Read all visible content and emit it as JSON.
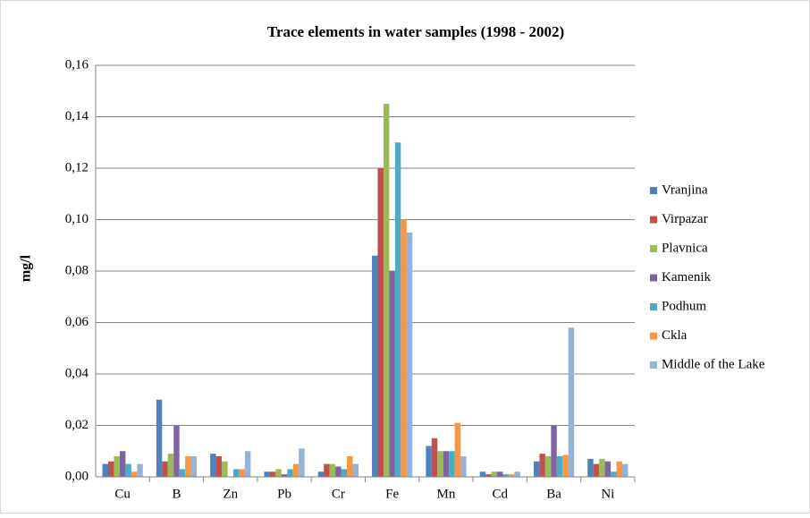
{
  "chart_data": {
    "type": "bar",
    "title": "Trace elements in water samples (1998 - 2002)",
    "y_label": "mg/l",
    "categories": [
      "Cu",
      "B",
      "Zn",
      "Pb",
      "Cr",
      "Fe",
      "Mn",
      "Cd",
      "Ba",
      "Ni"
    ],
    "series": [
      {
        "name": "Vranjina",
        "color": "#4f81bd",
        "values": [
          0.005,
          0.03,
          0.009,
          0.002,
          0.002,
          0.086,
          0.012,
          0.002,
          0.006,
          0.007
        ]
      },
      {
        "name": "Virpazar",
        "color": "#c0504d",
        "values": [
          0.006,
          0.006,
          0.008,
          0.002,
          0.005,
          0.12,
          0.015,
          0.001,
          0.009,
          0.005
        ]
      },
      {
        "name": "Plavnica",
        "color": "#9bbb59",
        "values": [
          0.008,
          0.009,
          0.006,
          0.003,
          0.005,
          0.145,
          0.01,
          0.002,
          0.008,
          0.007
        ]
      },
      {
        "name": "Kamenik",
        "color": "#8064a2",
        "values": [
          0.01,
          0.02,
          0.0,
          0.001,
          0.004,
          0.08,
          0.01,
          0.002,
          0.02,
          0.006
        ]
      },
      {
        "name": "Podhum",
        "color": "#4bacc6",
        "values": [
          0.005,
          0.003,
          0.003,
          0.003,
          0.003,
          0.13,
          0.01,
          0.001,
          0.008,
          0.002
        ]
      },
      {
        "name": "Ckla",
        "color": "#f79646",
        "values": [
          0.002,
          0.008,
          0.003,
          0.005,
          0.008,
          0.1,
          0.021,
          0.001,
          0.0085,
          0.006
        ]
      },
      {
        "name": "Middle of the Lake",
        "color": "#95b3d7",
        "values": [
          0.005,
          0.008,
          0.01,
          0.011,
          0.005,
          0.095,
          0.008,
          0.002,
          0.058,
          0.005
        ]
      }
    ],
    "ylim": [
      0,
      0.16
    ],
    "yticks": [
      {
        "value": 0,
        "label": "0,00"
      },
      {
        "value": 0.02,
        "label": "0,02"
      },
      {
        "value": 0.04,
        "label": "0,04"
      },
      {
        "value": 0.06,
        "label": "0,06"
      },
      {
        "value": 0.08,
        "label": "0,08"
      },
      {
        "value": 0.1,
        "label": "0,10"
      },
      {
        "value": 0.12,
        "label": "0,12"
      },
      {
        "value": 0.14,
        "label": "0,14"
      },
      {
        "value": 0.16,
        "label": "0,16"
      }
    ],
    "grid": true,
    "legend": "right"
  }
}
